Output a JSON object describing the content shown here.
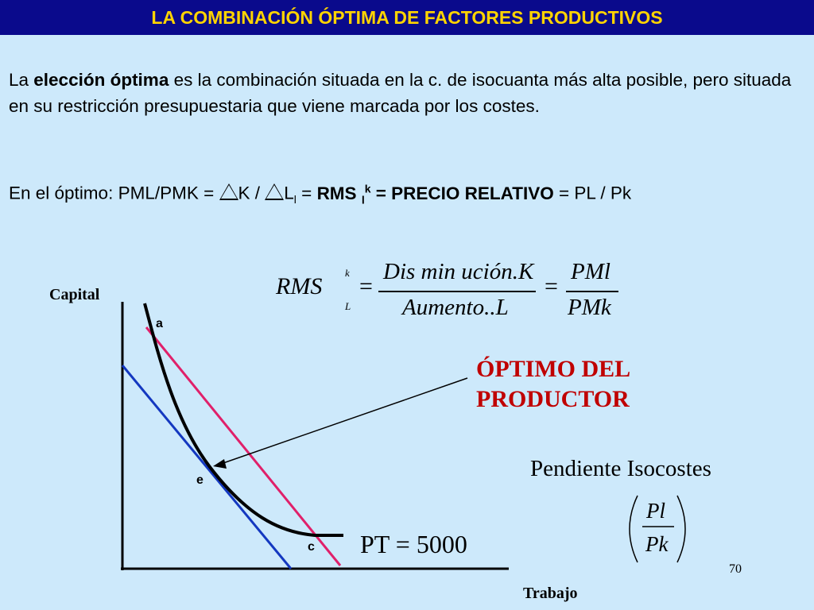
{
  "header": {
    "title": "LA COMBINACIÓN ÓPTIMA DE FACTORES PRODUCTIVOS"
  },
  "intro": {
    "p1_a": "La ",
    "p1_bold": "elección óptima",
    "p1_b": " es la combinación situada en la c. de isocuanta más alta posible, pero situada en su restricción presupuestaria que viene marcada por los costes.",
    "p2_prefix": "En el óptimo: PML/PMK = ",
    "p2_k": "K / ",
    "p2_l": "L",
    "p2_l_sub": "l",
    "p2_eq1": " = ",
    "p2_rms": "RMS ",
    "p2_rms_sub": "l",
    "p2_rms_sup": "k",
    "p2_bold_end": " = PRECIO RELATIVO",
    "p2_end": " = PL / Pk"
  },
  "formula": {
    "rms": "RMS",
    "sup": "k",
    "sub": "L",
    "eq": "=",
    "num": "Dis min ución.K",
    "den": "Aumento..L",
    "num2": "PMl",
    "den2": "PMk"
  },
  "graph": {
    "y_axis_label": "Capital",
    "x_axis_label": "Trabajo",
    "point_a": "a",
    "point_e": "e",
    "point_c": "c",
    "colors": {
      "isoquant": "#000000",
      "isocost_high": "#e0206a",
      "isocost_low": "#1438c0",
      "arrow": "#000000"
    }
  },
  "annotations": {
    "optimo_line1": "ÓPTIMO DEL",
    "optimo_line2": "PRODUCTOR",
    "pendiente": "Pendiente Isocostes",
    "slope_num": "Pl",
    "slope_den": "Pk",
    "pt": "PT = 5000"
  },
  "footer": {
    "page_number": "70"
  }
}
